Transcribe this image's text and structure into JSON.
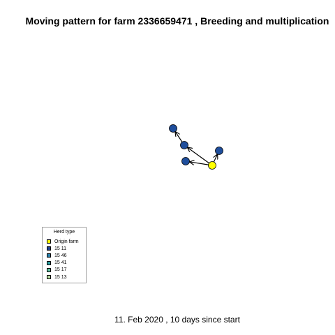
{
  "title": "Moving pattern for farm 2336659471 , Breeding and multiplication",
  "colors": {
    "origin": "#ffff00",
    "node": "#1f4e9c",
    "edge": "#000000"
  },
  "network": {
    "nodes": [
      {
        "id": "origin",
        "type": "Origin farm"
      },
      {
        "id": "n1",
        "type": "15 11"
      },
      {
        "id": "n2",
        "type": "15 11"
      },
      {
        "id": "n3",
        "type": "15 11"
      },
      {
        "id": "n4",
        "type": "15 11"
      }
    ],
    "edges": [
      {
        "from": "origin",
        "to": "n2"
      },
      {
        "from": "origin",
        "to": "n3"
      },
      {
        "from": "origin",
        "to": "n4"
      },
      {
        "from": "n2",
        "to": "n1"
      }
    ]
  },
  "legend": {
    "title": "Herd type",
    "items": [
      {
        "label": "Origin farm",
        "color": "#ffff00"
      },
      {
        "label": "15 11",
        "color": "#1f3f8f"
      },
      {
        "label": "15 46",
        "color": "#2a7fa8"
      },
      {
        "label": "15 41",
        "color": "#2a9fa0"
      },
      {
        "label": "15 17",
        "color": "#5fbfa0"
      },
      {
        "label": "15 13",
        "color": "#b5d9a0"
      }
    ]
  },
  "footer": "11. Feb 2020 ,  10 days since start"
}
